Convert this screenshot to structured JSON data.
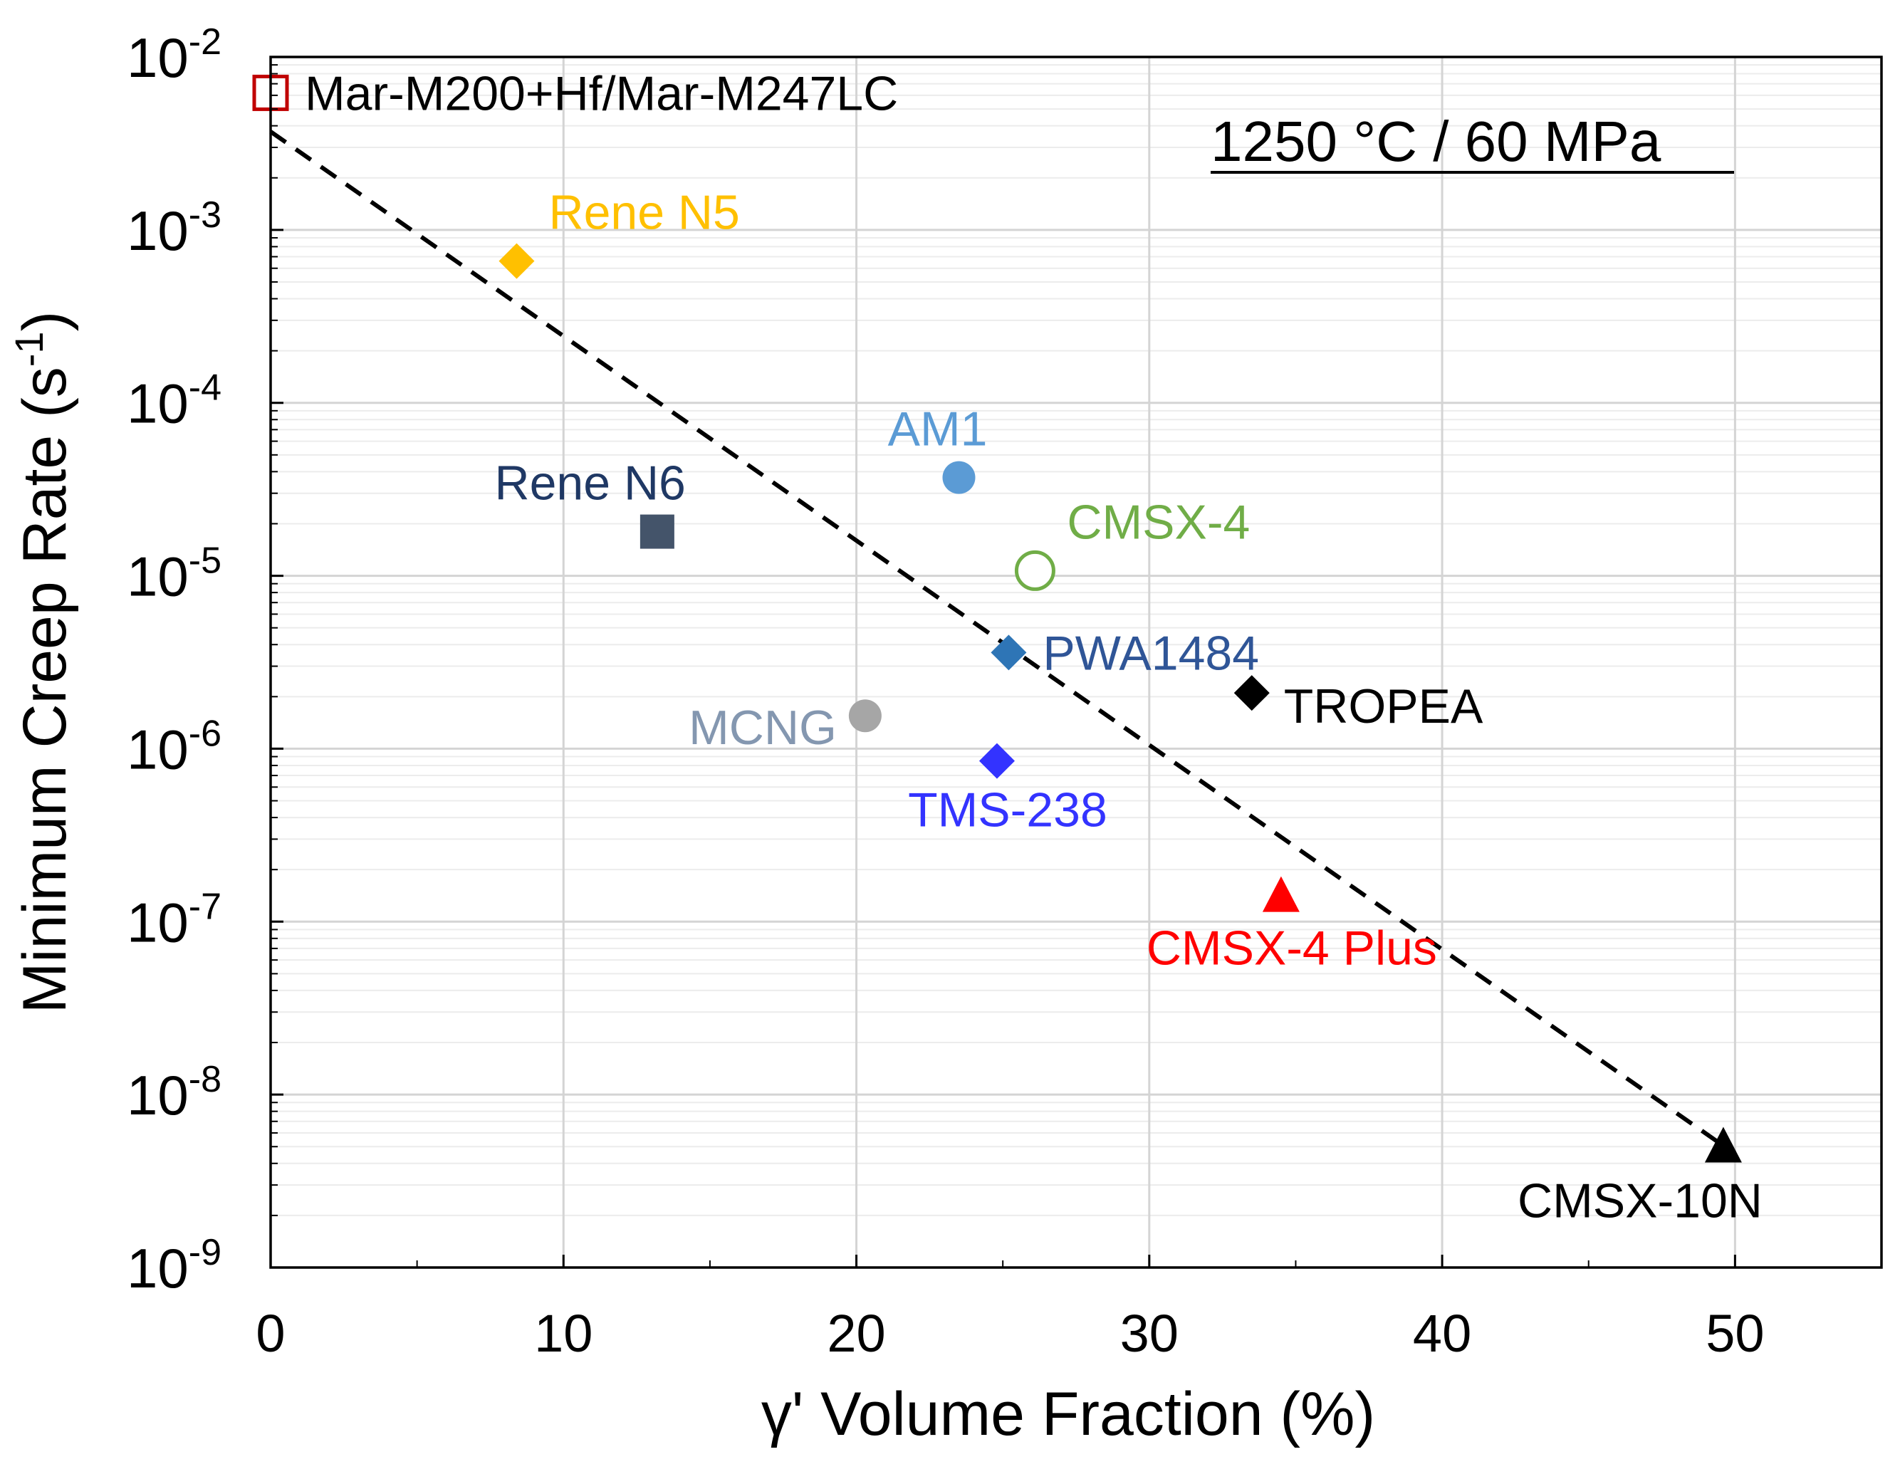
{
  "chart_data": {
    "type": "scatter",
    "title": "",
    "annotation": "1250 °C / 60 MPa",
    "xlabel": "γ' Volume Fraction (%)",
    "ylabel_main": "Minimum Creep Rate (s",
    "ylabel_sup": "-1",
    "ylabel_close": ")",
    "x_axis": {
      "min": 0,
      "max": 55,
      "scale": "linear",
      "ticks": [
        0,
        10,
        20,
        30,
        40,
        50
      ],
      "tick_labels": [
        "0",
        "10",
        "20",
        "30",
        "40",
        "50"
      ],
      "grid": true
    },
    "y_axis": {
      "min_exp": -9,
      "max_exp": -2,
      "scale": "log",
      "tick_exps": [
        -2,
        -3,
        -4,
        -5,
        -6,
        -7,
        -8,
        -9
      ],
      "tick_base": "10",
      "tick_sups": [
        "-2",
        "-3",
        "-4",
        "-5",
        "-6",
        "-7",
        "-8",
        "-9"
      ],
      "grid": true,
      "minor_grid": true
    },
    "trendline": {
      "style": "dashed",
      "color": "#000000",
      "points": [
        {
          "x": 0,
          "y": 0.0037
        },
        {
          "x": 49.5,
          "y": 5.2e-09
        }
      ]
    },
    "series": [
      {
        "name": "Mar-M200+Hf/Mar-M247LC",
        "x": 0,
        "y": 0.0062,
        "marker": "square-open",
        "color": "#c00000",
        "label_color": "#000000",
        "label_pos": "right"
      },
      {
        "name": "Rene N5",
        "x": 8.4,
        "y": 0.00066,
        "marker": "diamond",
        "color": "#ffc000",
        "label_color": "#ffc000",
        "label_pos": "above-right"
      },
      {
        "name": "Rene N6",
        "x": 13.2,
        "y": 1.8e-05,
        "marker": "square",
        "color": "#44546a",
        "label_color": "#1f3864",
        "label_pos": "above-left"
      },
      {
        "name": "AM1",
        "x": 23.5,
        "y": 3.7e-05,
        "marker": "circle",
        "color": "#5b9bd5",
        "label_color": "#5b9bd5",
        "label_pos": "above-left"
      },
      {
        "name": "CMSX-4",
        "x": 26.1,
        "y": 1.07e-05,
        "marker": "circle-open",
        "color": "#70ad47",
        "label_color": "#70ad47",
        "label_pos": "above-right"
      },
      {
        "name": "PWA1484",
        "x": 25.2,
        "y": 3.6e-06,
        "marker": "diamond",
        "color": "#2e75b6",
        "label_color": "#2f5597",
        "label_pos": "right"
      },
      {
        "name": "TROPEA",
        "x": 33.5,
        "y": 2.1e-06,
        "marker": "diamond",
        "color": "#000000",
        "label_color": "#000000",
        "label_pos": "below-right"
      },
      {
        "name": "MCNG",
        "x": 20.3,
        "y": 1.55e-06,
        "marker": "circle",
        "color": "#a6a6a6",
        "label_color": "#8497b0",
        "label_pos": "left"
      },
      {
        "name": "TMS-238",
        "x": 24.8,
        "y": 8.5e-07,
        "marker": "diamond",
        "color": "#3333ff",
        "label_color": "#3333ff",
        "label_pos": "below"
      },
      {
        "name": "CMSX-4 Plus",
        "x": 34.5,
        "y": 1.35e-07,
        "marker": "triangle",
        "color": "#ff0000",
        "label_color": "#ff0000",
        "label_pos": "below"
      },
      {
        "name": "CMSX-10N",
        "x": 49.6,
        "y": 4.8e-09,
        "marker": "triangle",
        "color": "#000000",
        "label_color": "#000000",
        "label_pos": "below-left"
      }
    ]
  }
}
